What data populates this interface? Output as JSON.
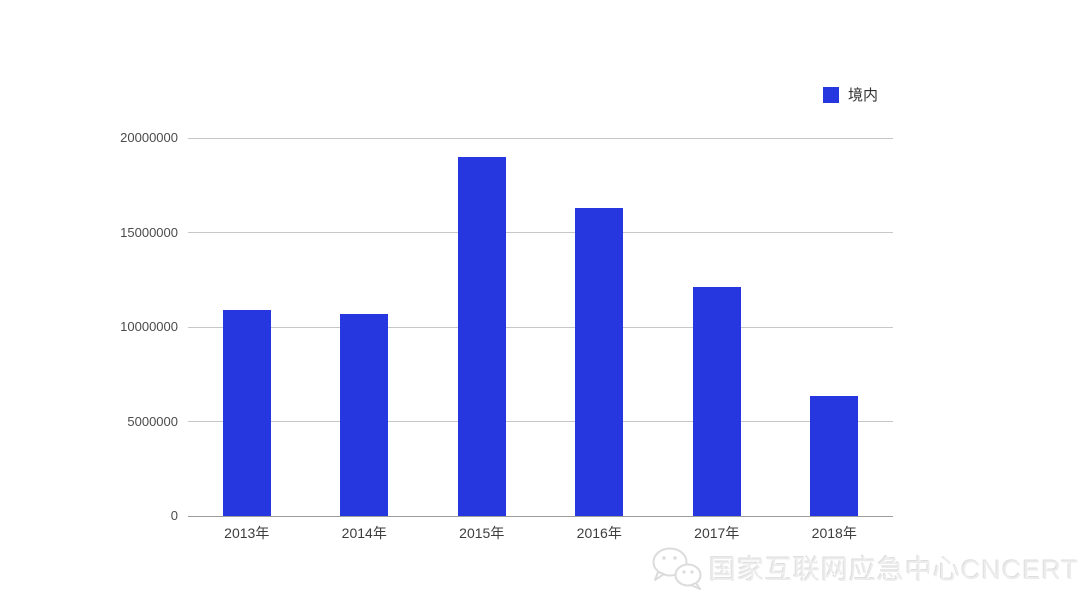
{
  "chart_data": {
    "type": "bar",
    "title": "",
    "xlabel": "",
    "ylabel": "",
    "categories": [
      "2013年",
      "2014年",
      "2015年",
      "2016年",
      "2017年",
      "2018年"
    ],
    "series": [
      {
        "name": "境内",
        "values": [
          10900000,
          10700000,
          19000000,
          16300000,
          12100000,
          6350000
        ]
      }
    ],
    "ylim": [
      0,
      20000000
    ],
    "yticks": [
      0,
      5000000,
      10000000,
      15000000,
      20000000
    ],
    "ytick_labels": [
      "0",
      "5000000",
      "10000000",
      "15000000",
      "20000000"
    ],
    "grid": true,
    "legend_position": "top-right",
    "bar_color": "#2737e0"
  },
  "legend": {
    "label": "境内"
  },
  "watermark": {
    "text": "国家互联网应急中心CNCERT"
  },
  "colors": {
    "bar": "#2737e0",
    "gridline": "#c7c7c7",
    "baseline": "#9d9d9d",
    "axis_text": "#4b4b4b",
    "watermark_text": "#ececec"
  }
}
